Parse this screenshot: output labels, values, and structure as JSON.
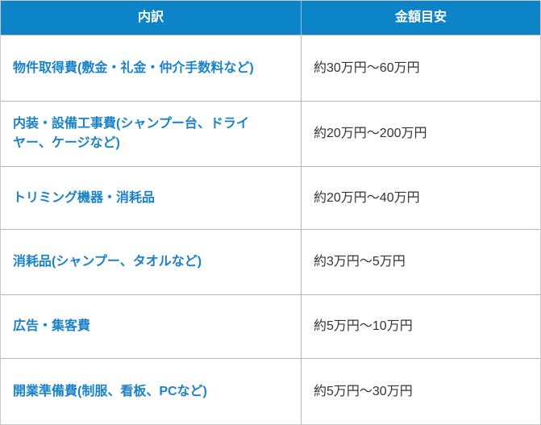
{
  "table": {
    "columns": [
      {
        "label": "内訳"
      },
      {
        "label": "金額目安"
      }
    ],
    "rows": [
      {
        "item": "物件取得費(敷金・礼金・仲介手数料など)",
        "amount": "約30万円〜60万円"
      },
      {
        "item": "内装・設備工事費(シャンプー台、ドライ\nヤー、ケージなど)",
        "amount": "約20万円〜200万円"
      },
      {
        "item": "トリミング機器・消耗品",
        "amount": "約20万円〜40万円"
      },
      {
        "item": "消耗品(シャンプー、タオルなど)",
        "amount": "約3万円〜5万円"
      },
      {
        "item": "広告・集客費",
        "amount": "約5万円〜10万円"
      },
      {
        "item": "開業準備費(制服、看板、PCなど)",
        "amount": "約5万円〜30万円"
      }
    ],
    "colors": {
      "header_bg": "#0d83c8",
      "header_text": "#ffffff",
      "item_text": "#1a82c9",
      "amount_text": "#333333",
      "border": "#b5b5b5"
    }
  }
}
